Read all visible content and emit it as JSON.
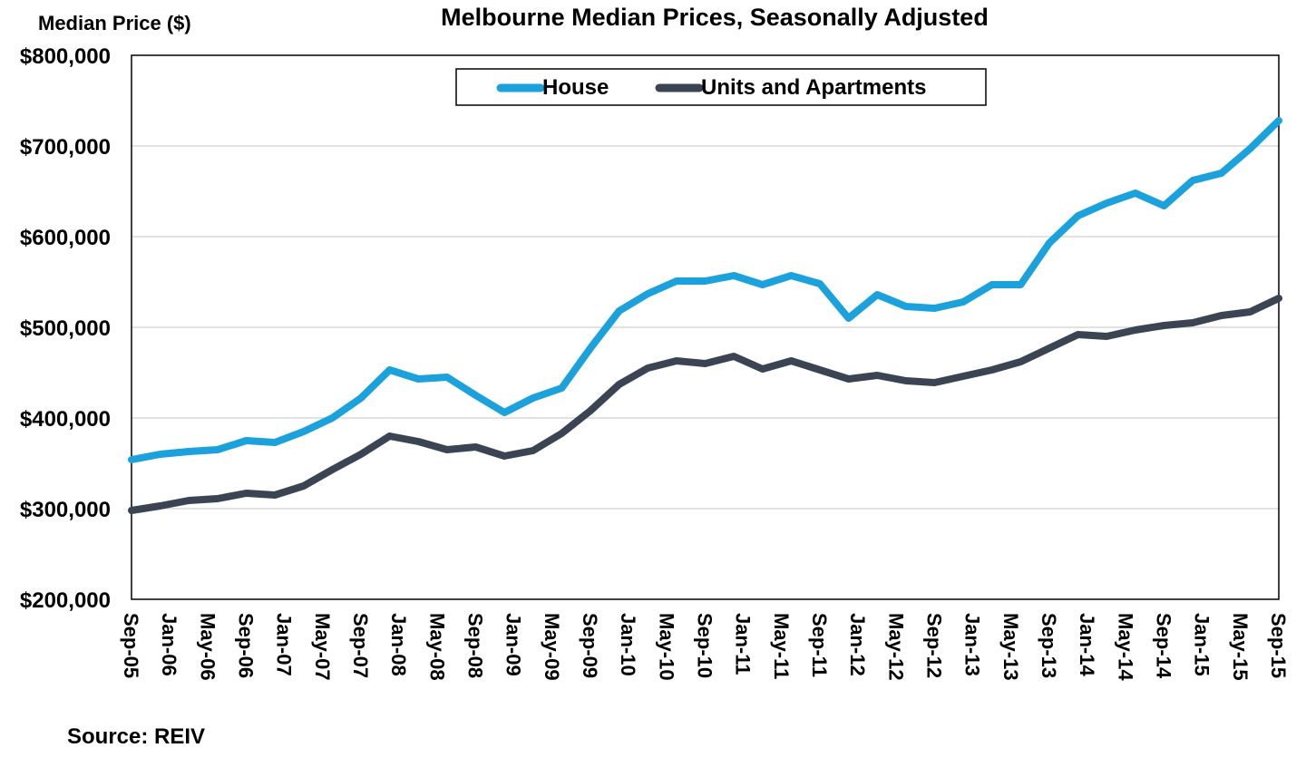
{
  "chart_data": {
    "type": "line",
    "title": "Melbourne Median Prices, Seasonally Adjusted",
    "ylabel": "Median Price ($)",
    "xlabel": "",
    "source": "Source:  REIV",
    "ylim": [
      200000,
      800000
    ],
    "yticks": [
      200000,
      300000,
      400000,
      500000,
      600000,
      700000,
      800000
    ],
    "ytick_labels": [
      "$200,000",
      "$300,000",
      "$400,000",
      "$500,000",
      "$600,000",
      "$700,000",
      "$800,000"
    ],
    "x_start": "Sep-05",
    "x_end": "Sep-15",
    "x_frequency": "quarterly",
    "xtick_labels": [
      "Sep-05",
      "Jan-06",
      "May-06",
      "Sep-06",
      "Jan-07",
      "May-07",
      "Sep-07",
      "Jan-08",
      "May-08",
      "Sep-08",
      "Jan-09",
      "May-09",
      "Sep-09",
      "Jan-10",
      "May-10",
      "Sep-10",
      "Jan-11",
      "May-11",
      "Sep-11",
      "Jan-12",
      "May-12",
      "Sep-12",
      "Jan-13",
      "May-13",
      "Sep-13",
      "Jan-14",
      "May-14",
      "Sep-14",
      "Jan-15",
      "May-15",
      "Sep-15"
    ],
    "grid": true,
    "legend_position": "top-center",
    "series": [
      {
        "name": "House",
        "color": "#1ba1dc",
        "values": [
          354000,
          360000,
          363000,
          365000,
          375000,
          373000,
          385000,
          400000,
          422000,
          453000,
          443000,
          445000,
          425000,
          406000,
          422000,
          433000,
          477000,
          518000,
          537000,
          551000,
          551000,
          557000,
          547000,
          557000,
          548000,
          510000,
          536000,
          523000,
          521000,
          528000,
          547000,
          547000,
          593000,
          623000,
          637000,
          648000,
          634000,
          662000,
          670000,
          697000,
          728000
        ]
      },
      {
        "name": "Units and Apartments",
        "color": "#3b4452",
        "values": [
          298000,
          303000,
          309000,
          311000,
          317000,
          315000,
          325000,
          343000,
          360000,
          380000,
          374000,
          365000,
          368000,
          358000,
          364000,
          383000,
          408000,
          437000,
          455000,
          463000,
          460000,
          468000,
          454000,
          463000,
          453000,
          443000,
          447000,
          441000,
          439000,
          446000,
          453000,
          462000,
          477000,
          492000,
          490000,
          497000,
          502000,
          505000,
          513000,
          517000,
          532000
        ]
      }
    ]
  }
}
